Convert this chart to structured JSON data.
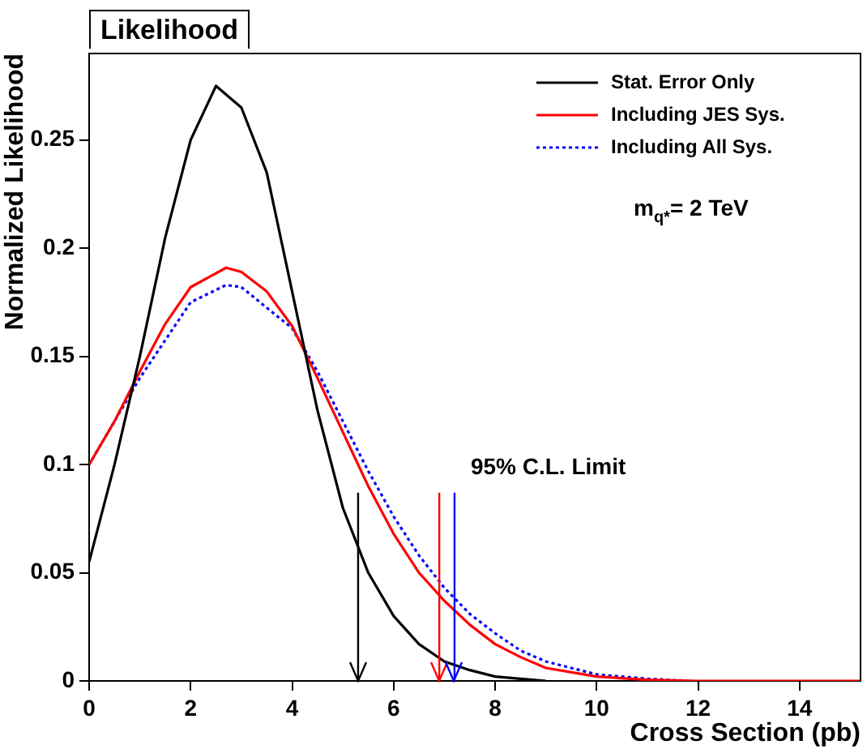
{
  "chart_data": {
    "type": "line",
    "title": "Likelihood",
    "xlabel": "Cross Section (pb)",
    "ylabel": "Normalized Likelihood",
    "xlim": [
      0,
      15.2
    ],
    "xticks": [
      0,
      2,
      4,
      6,
      8,
      10,
      12,
      14
    ],
    "ylim": [
      0,
      0.29
    ],
    "yticks": [
      0,
      0.05,
      0.1,
      0.15,
      0.2,
      0.25
    ],
    "grid": false,
    "legend": "top right",
    "marker": "none",
    "series": [
      {
        "name": "Stat. Error Only",
        "color": "#000000",
        "line_style": "solid",
        "x": [
          0,
          0.5,
          1,
          1.5,
          2,
          2.5,
          3,
          3.5,
          4,
          4.5,
          5,
          5.5,
          6,
          6.5,
          7,
          7.5,
          8,
          8.5,
          9
        ],
        "values": [
          0.055,
          0.1,
          0.15,
          0.205,
          0.25,
          0.275,
          0.265,
          0.235,
          0.18,
          0.125,
          0.08,
          0.05,
          0.03,
          0.017,
          0.009,
          0.005,
          0.002,
          0.001,
          0
        ]
      },
      {
        "name": "Including JES Sys.",
        "color": "#ff0000",
        "line_style": "solid",
        "x": [
          0,
          0.5,
          1,
          1.5,
          2,
          2.7,
          3,
          3.5,
          4,
          4.5,
          5,
          5.5,
          6,
          6.5,
          7,
          7.5,
          8,
          8.5,
          9,
          10,
          11,
          12,
          15.2
        ],
        "values": [
          0.1,
          0.12,
          0.143,
          0.165,
          0.182,
          0.191,
          0.189,
          0.18,
          0.164,
          0.14,
          0.115,
          0.09,
          0.068,
          0.05,
          0.037,
          0.026,
          0.017,
          0.011,
          0.006,
          0.002,
          0.0005,
          0,
          0
        ]
      },
      {
        "name": "Including All Sys.",
        "color": "#0000ff",
        "line_style": "dotted",
        "x": [
          0,
          1,
          2,
          2.7,
          3,
          4,
          4.5,
          5,
          5.5,
          6,
          6.5,
          7,
          7.5,
          8,
          8.5,
          9,
          10,
          11,
          11.8
        ],
        "values": [
          0.1,
          0.14,
          0.175,
          0.183,
          0.182,
          0.163,
          0.143,
          0.12,
          0.097,
          0.076,
          0.058,
          0.043,
          0.031,
          0.022,
          0.014,
          0.009,
          0.003,
          0.001,
          0
        ]
      }
    ],
    "ref_lines": [
      {
        "axis": "x",
        "value": 5.3,
        "color": "#000000"
      },
      {
        "axis": "x",
        "value": 6.9,
        "color": "#ff0000"
      },
      {
        "axis": "x",
        "value": 7.2,
        "color": "#0000ff"
      }
    ],
    "annotations": [
      "95% C.L. Limit",
      "m$_{q*}$= 2 TeV"
    ]
  }
}
